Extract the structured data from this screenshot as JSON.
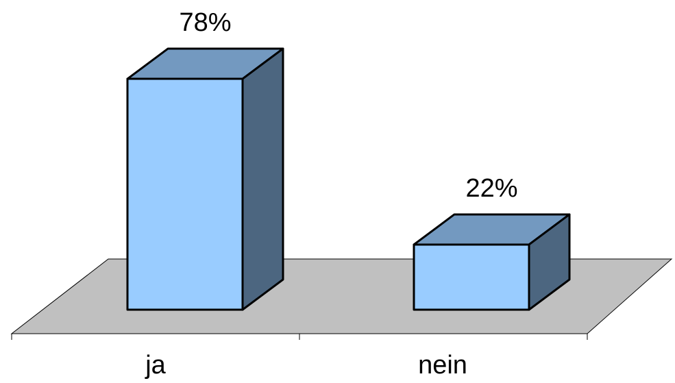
{
  "chart_data": {
    "type": "bar",
    "three_d": true,
    "categories": [
      "ja",
      "nein"
    ],
    "values": [
      78,
      22
    ],
    "data_labels": [
      "78%",
      "22%"
    ],
    "unit": "%",
    "ylim": [
      0,
      100
    ],
    "grid": false,
    "legend": "none",
    "colors": {
      "bar_front": "#99CCFF",
      "bar_top": "#7399C0",
      "bar_side": "#4C6680",
      "floor": "#C0C0C0",
      "outline": "#000000"
    }
  }
}
